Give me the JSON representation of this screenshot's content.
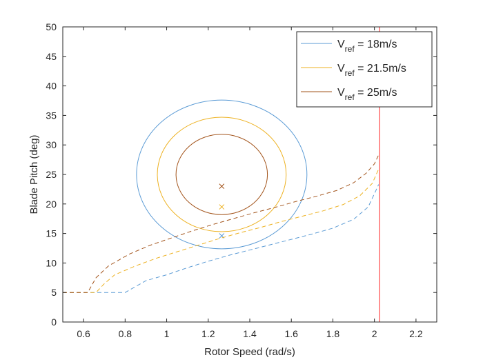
{
  "chart_data": {
    "type": "line",
    "xlabel": "Rotor Speed (rad/s)",
    "ylabel": "Blade Pitch (deg)",
    "xlim": [
      0.5,
      2.3
    ],
    "ylim": [
      0,
      50
    ],
    "xticks": [
      0.6,
      0.8,
      1,
      1.2,
      1.4,
      1.6,
      1.8,
      2,
      2.2
    ],
    "yticks": [
      0,
      5,
      10,
      15,
      20,
      25,
      30,
      35,
      40,
      45,
      50
    ],
    "grid": false,
    "legend_position": "top-right",
    "series": [
      {
        "legend_main": "V",
        "legend_sub": "ref",
        "legend_tail": " = 18m/s",
        "color": "#5B9BD5",
        "ellipse": {
          "center": [
            1.265,
            25
          ],
          "rx": 0.41,
          "ry": 12.6
        },
        "marker": [
          1.265,
          14.6
        ],
        "boundary": [
          [
            0.5,
            5
          ],
          [
            0.8,
            5
          ],
          [
            0.85,
            6
          ],
          [
            0.9,
            7
          ],
          [
            1.0,
            8
          ],
          [
            1.1,
            9.2
          ],
          [
            1.2,
            10.3
          ],
          [
            1.3,
            11.3
          ],
          [
            1.4,
            12.2
          ],
          [
            1.5,
            13.1
          ],
          [
            1.6,
            14.0
          ],
          [
            1.7,
            14.9
          ],
          [
            1.8,
            15.9
          ],
          [
            1.9,
            17.4
          ],
          [
            1.97,
            19.5
          ],
          [
            2.01,
            22.5
          ],
          [
            2.02,
            23.3
          ]
        ]
      },
      {
        "legend_main": "V",
        "legend_sub": "ref",
        "legend_tail": " = 21.5m/s",
        "color": "#EDB120",
        "ellipse": {
          "center": [
            1.265,
            25
          ],
          "rx": 0.31,
          "ry": 9.7
        },
        "marker": [
          1.265,
          19.5
        ],
        "boundary": [
          [
            0.5,
            5
          ],
          [
            0.66,
            5
          ],
          [
            0.7,
            6.5
          ],
          [
            0.75,
            8
          ],
          [
            0.85,
            9.5
          ],
          [
            0.95,
            10.8
          ],
          [
            1.05,
            11.9
          ],
          [
            1.15,
            13.0
          ],
          [
            1.25,
            14.1
          ],
          [
            1.35,
            15.1
          ],
          [
            1.45,
            16.0
          ],
          [
            1.55,
            17.0
          ],
          [
            1.65,
            17.9
          ],
          [
            1.75,
            18.8
          ],
          [
            1.85,
            19.9
          ],
          [
            1.93,
            21.4
          ],
          [
            1.99,
            23.5
          ],
          [
            2.02,
            25.9
          ]
        ]
      },
      {
        "legend_main": "V",
        "legend_sub": "ref",
        "legend_tail": " = 25m/s",
        "color": "#A2531A",
        "ellipse": {
          "center": [
            1.265,
            25
          ],
          "rx": 0.22,
          "ry": 6.8
        },
        "marker": [
          1.265,
          23
        ],
        "boundary": [
          [
            0.5,
            5
          ],
          [
            0.62,
            5
          ],
          [
            0.66,
            7.5
          ],
          [
            0.72,
            9.5
          ],
          [
            0.82,
            11.5
          ],
          [
            0.92,
            13.0
          ],
          [
            1.02,
            14.2
          ],
          [
            1.12,
            15.4
          ],
          [
            1.22,
            16.5
          ],
          [
            1.32,
            17.5
          ],
          [
            1.42,
            18.5
          ],
          [
            1.52,
            19.4
          ],
          [
            1.62,
            20.4
          ],
          [
            1.72,
            21.3
          ],
          [
            1.82,
            22.3
          ],
          [
            1.9,
            23.6
          ],
          [
            1.96,
            25.2
          ],
          [
            2.0,
            26.8
          ],
          [
            2.02,
            28.3
          ]
        ]
      }
    ],
    "vertical_line": {
      "x": 2.025,
      "color": "#FF6B6B"
    }
  }
}
